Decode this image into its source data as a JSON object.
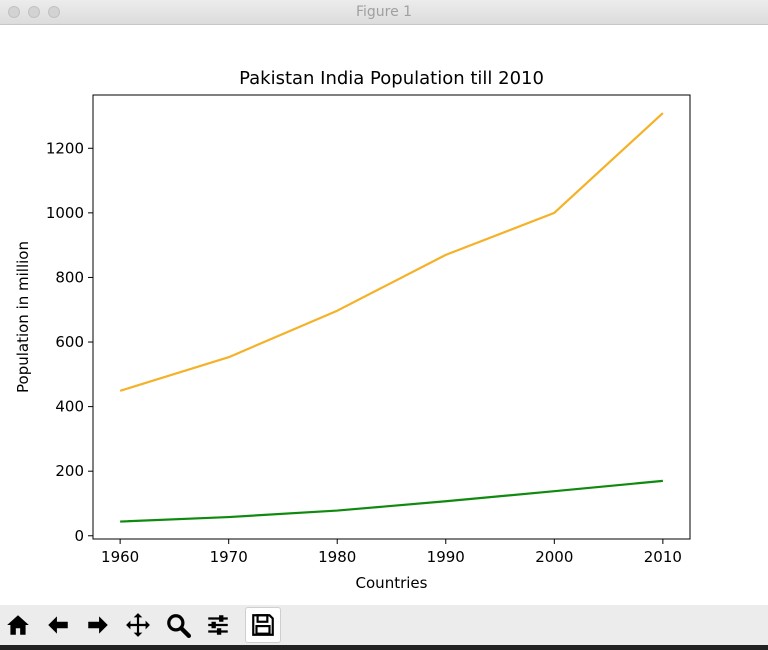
{
  "window": {
    "title": "Figure 1"
  },
  "toolbar": {
    "buttons": [
      {
        "name": "home-button",
        "icon": "home-icon"
      },
      {
        "name": "back-button",
        "icon": "arrow-left-icon"
      },
      {
        "name": "forward-button",
        "icon": "arrow-right-icon"
      },
      {
        "name": "pan-button",
        "icon": "move-icon"
      },
      {
        "name": "zoom-button",
        "icon": "magnifier-icon"
      },
      {
        "name": "configure-subplots-button",
        "icon": "sliders-icon"
      },
      {
        "name": "save-button",
        "icon": "floppy-disk-icon"
      }
    ]
  },
  "chart_data": {
    "type": "line",
    "title": "Pakistan India Population till 2010",
    "xlabel": "Countries",
    "ylabel": "Population in million",
    "x": [
      1960,
      1970,
      1980,
      1990,
      2000,
      2010
    ],
    "series": [
      {
        "values": [
          449,
          553,
          697,
          870,
          1000,
          1309
        ],
        "color": "#f5b127"
      },
      {
        "values": [
          44,
          58,
          78,
          107,
          138,
          170
        ],
        "color": "#0f8a0f"
      }
    ],
    "xlim": [
      1957.5,
      2012.5
    ],
    "ylim": [
      -10,
      1365
    ],
    "xticks": [
      "1960",
      "1970",
      "1980",
      "1990",
      "2000",
      "2010"
    ],
    "yticks": [
      "0",
      "200",
      "400",
      "600",
      "800",
      "1000",
      "1200"
    ],
    "grid": false,
    "legend": "none"
  }
}
